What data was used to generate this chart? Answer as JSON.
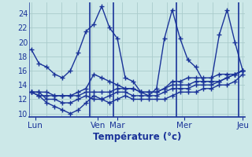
{
  "xlabel": "Température (°c)",
  "bg_color": "#cce8e8",
  "grid_color": "#aacccc",
  "line_color": "#1a3399",
  "ylim": [
    9.5,
    25.5
  ],
  "yticks": [
    10,
    12,
    14,
    16,
    18,
    20,
    22,
    24
  ],
  "day_labels": [
    "Lun",
    "Ven",
    "Mar",
    "Mer",
    "Jeu"
  ],
  "day_tick_x": [
    0.5,
    8.5,
    11.0,
    19.5,
    27.0
  ],
  "vline_x": [
    7.5,
    10.5,
    18.5,
    26.5
  ],
  "n_points": 28,
  "series_max": [
    19.0,
    17.0,
    16.5,
    15.5,
    15.0,
    16.0,
    18.5,
    21.5,
    22.5,
    25.0,
    22.0,
    20.5,
    15.0,
    14.5,
    13.0,
    12.5,
    13.5,
    20.5,
    24.5,
    20.5,
    17.5,
    16.5,
    14.5,
    14.5,
    21.0,
    24.5,
    20.0,
    16.0
  ],
  "series_a": [
    13.0,
    12.5,
    12.5,
    12.5,
    12.5,
    12.5,
    13.0,
    13.5,
    15.5,
    15.0,
    14.5,
    14.0,
    13.5,
    13.5,
    13.0,
    13.0,
    13.0,
    13.5,
    14.5,
    14.5,
    15.0,
    15.0,
    15.0,
    15.0,
    15.5,
    15.5,
    15.5,
    16.0
  ],
  "series_b": [
    13.0,
    13.0,
    13.0,
    12.5,
    12.5,
    12.5,
    12.5,
    13.0,
    13.0,
    13.0,
    13.0,
    13.5,
    13.5,
    13.5,
    13.0,
    13.0,
    13.0,
    13.5,
    14.0,
    14.0,
    14.0,
    14.5,
    14.5,
    14.5,
    14.5,
    15.0,
    15.5,
    16.0
  ],
  "series_min": [
    13.0,
    13.0,
    12.0,
    12.0,
    11.5,
    11.5,
    12.0,
    12.5,
    12.0,
    12.0,
    12.5,
    13.0,
    13.0,
    12.5,
    12.5,
    12.5,
    12.5,
    13.0,
    13.5,
    13.5,
    13.5,
    14.0,
    14.0,
    14.0,
    14.5,
    15.0,
    15.5,
    16.0
  ],
  "series_bot": [
    13.0,
    12.5,
    11.5,
    11.0,
    10.5,
    10.0,
    10.5,
    11.5,
    12.5,
    12.0,
    11.5,
    12.0,
    12.5,
    12.0,
    12.0,
    12.0,
    12.0,
    12.0,
    12.5,
    13.0,
    13.0,
    13.0,
    13.5,
    13.5,
    14.0,
    14.0,
    14.5,
    15.5
  ]
}
